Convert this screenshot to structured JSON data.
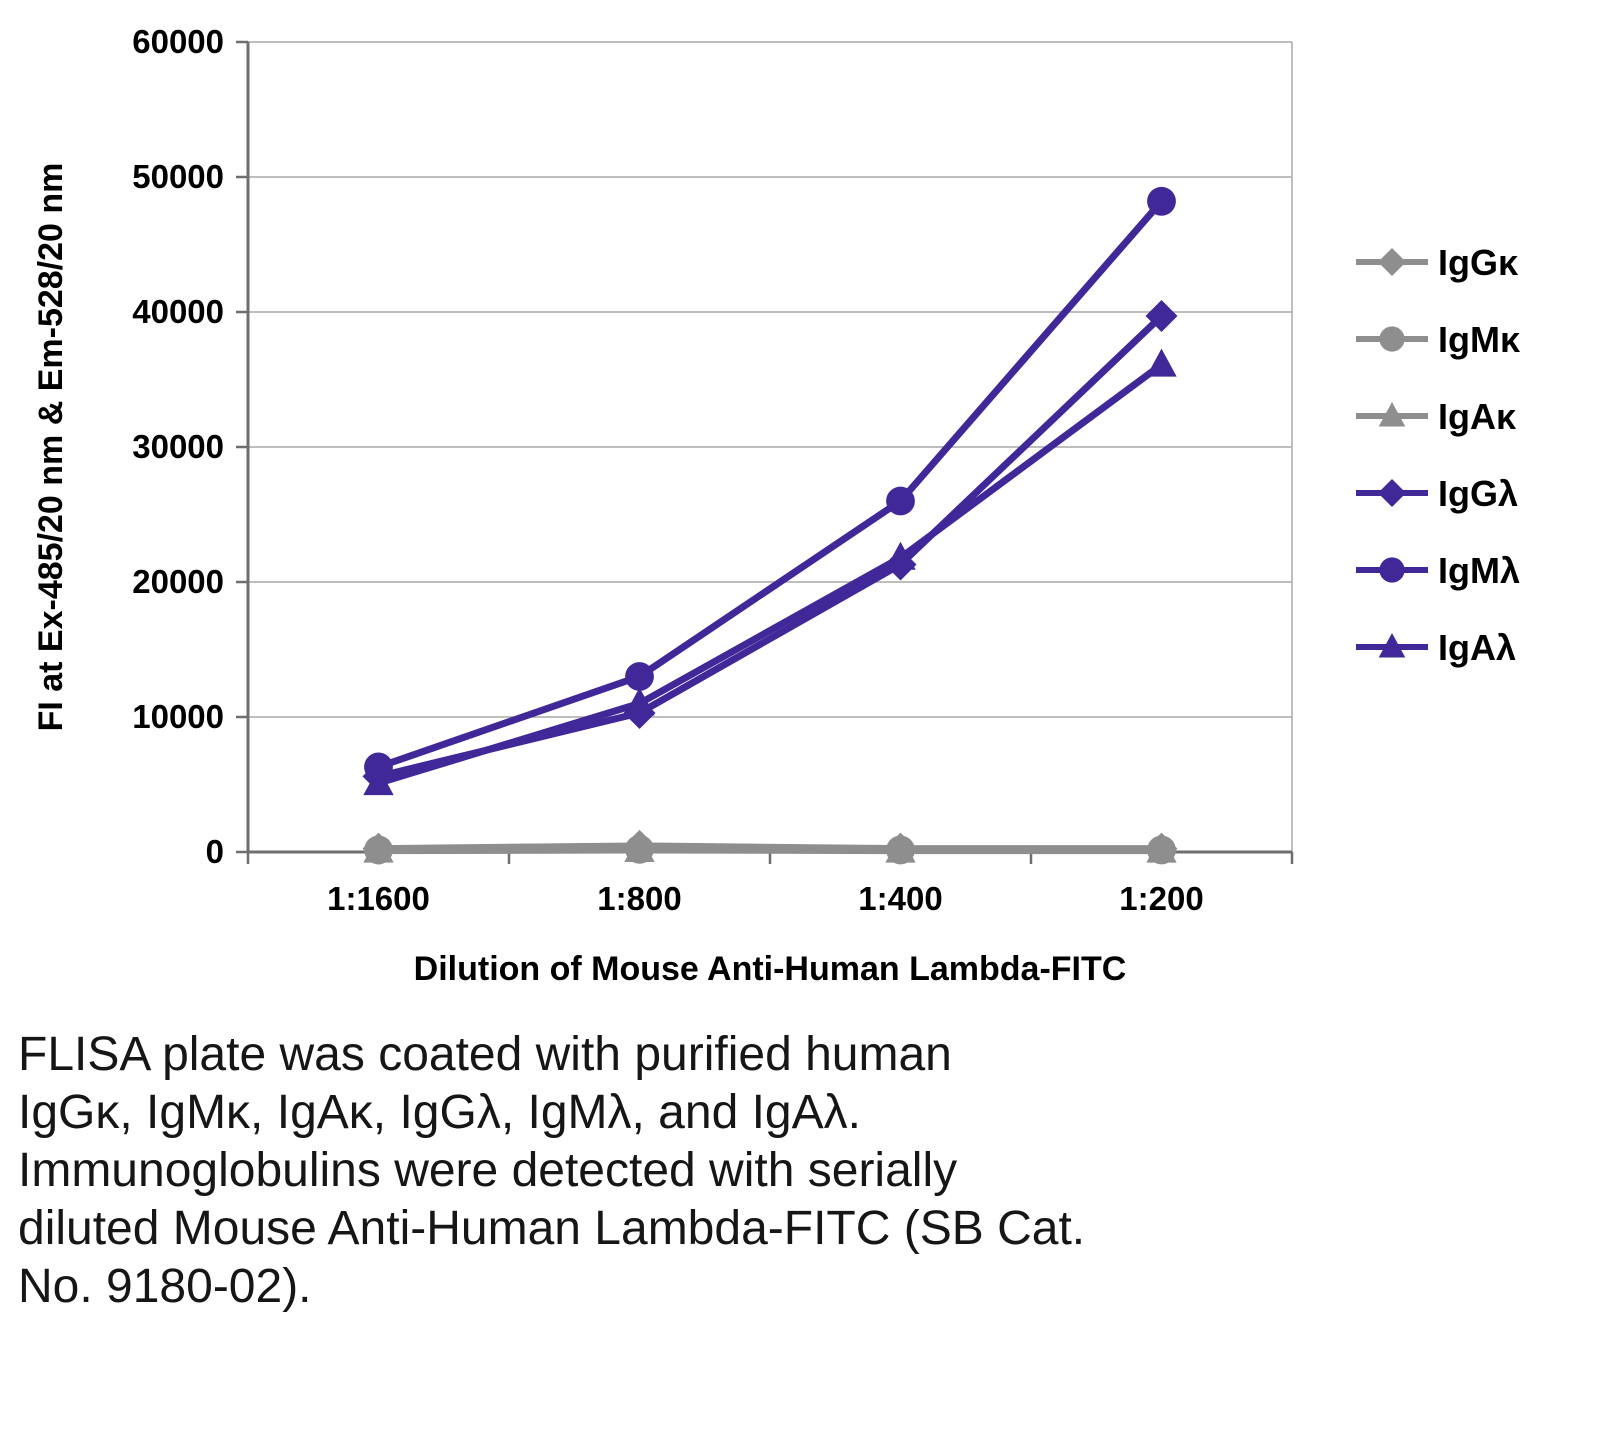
{
  "chart_data": {
    "type": "line",
    "title": "",
    "xlabel": "Dilution of Mouse Anti-Human Lambda-FITC",
    "ylabel": "FI at Ex-485/20 nm & Em-528/20 nm",
    "categories": [
      "1:1600",
      "1:800",
      "1:400",
      "1:200"
    ],
    "ylim": [
      0,
      60000
    ],
    "ytick_step": 10000,
    "ytick_labels": [
      "0",
      "10000",
      "20000",
      "30000",
      "40000",
      "50000",
      "60000"
    ],
    "grid": true,
    "legend_position": "right",
    "colors": {
      "purple": "#402899",
      "gray": "#8e8e8e",
      "axis": "#6e6e6e",
      "grid": "#a9a9a9"
    },
    "series": [
      {
        "name": "IgGκ",
        "marker": "diamond",
        "color": "#8e8e8e",
        "values": [
          250,
          450,
          250,
          250
        ]
      },
      {
        "name": "IgMκ",
        "marker": "circle",
        "color": "#8e8e8e",
        "values": [
          150,
          200,
          150,
          150
        ]
      },
      {
        "name": "IgAκ",
        "marker": "triangle",
        "color": "#8e8e8e",
        "values": [
          100,
          150,
          100,
          100
        ]
      },
      {
        "name": "IgGλ",
        "marker": "diamond",
        "color": "#402899",
        "values": [
          5600,
          10300,
          21300,
          39700
        ]
      },
      {
        "name": "IgMλ",
        "marker": "circle",
        "color": "#402899",
        "values": [
          6300,
          13000,
          26000,
          48200
        ]
      },
      {
        "name": "IgAλ",
        "marker": "triangle",
        "color": "#402899",
        "values": [
          5100,
          11000,
          21800,
          36100
        ]
      }
    ]
  },
  "caption_lines": [
    "FLISA plate was coated with purified human",
    "IgGκ, IgMκ, IgAκ, IgGλ, IgMλ, and IgAλ.",
    "Immunoglobulins were detected with serially",
    "diluted Mouse Anti-Human Lambda-FITC (SB Cat.",
    "No. 9180-02)."
  ]
}
